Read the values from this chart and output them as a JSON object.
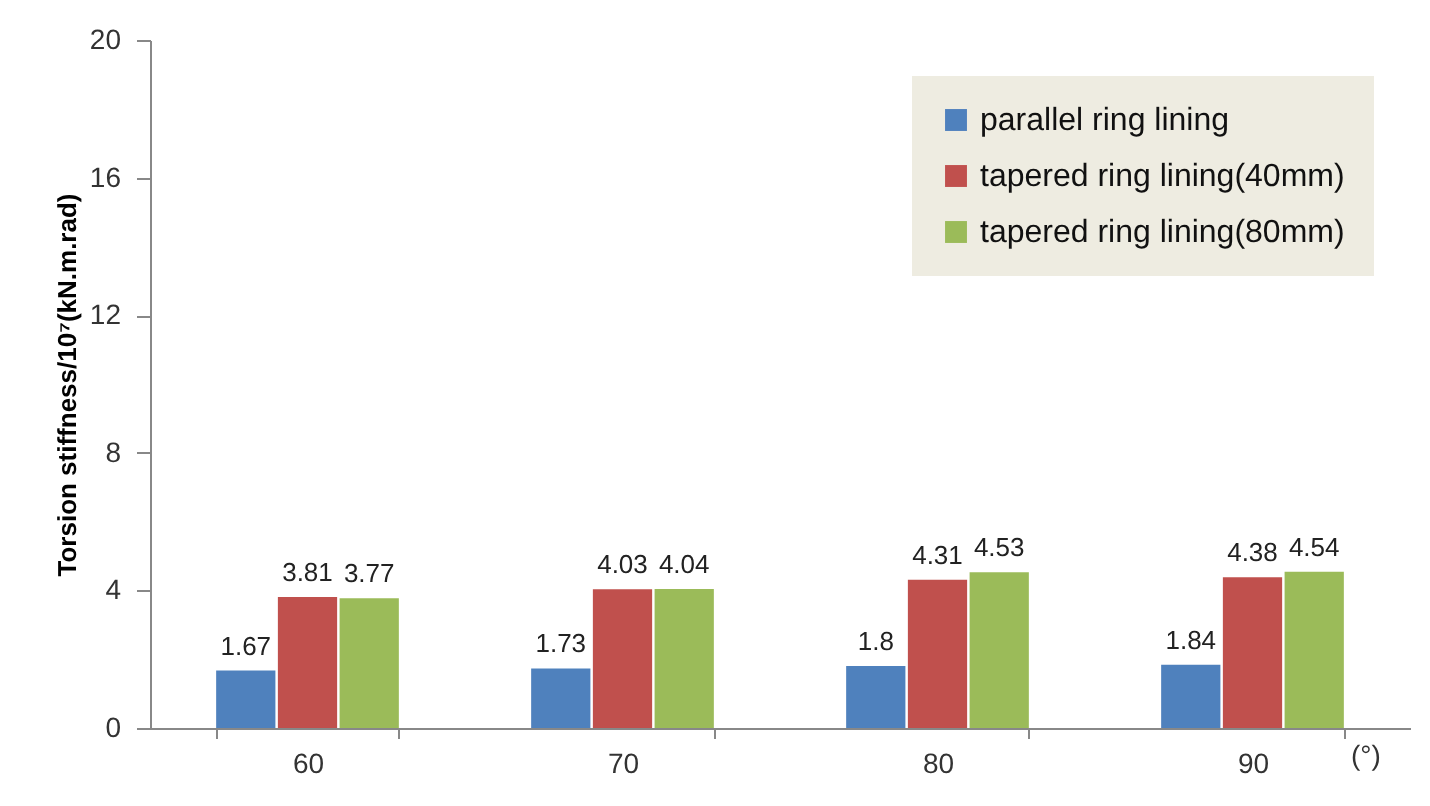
{
  "chart_data": {
    "type": "bar",
    "xlabel": "(°)",
    "ylabel": "Torsion stiffness/10⁷(kN.m.rad)",
    "categories": [
      "60",
      "70",
      "80",
      "90"
    ],
    "series": [
      {
        "name": "parallel ring lining",
        "color": "#4f81bd",
        "values": [
          1.67,
          1.73,
          1.8,
          1.84
        ]
      },
      {
        "name": "tapered ring lining(40mm)",
        "color": "#c0504d",
        "values": [
          3.81,
          4.03,
          4.31,
          4.38
        ]
      },
      {
        "name": "tapered ring lining(80mm)",
        "color": "#9bbb59",
        "values": [
          3.77,
          4.04,
          4.53,
          4.54
        ]
      }
    ],
    "ylim": [
      0,
      20
    ],
    "yticks": [
      0,
      4,
      8,
      12,
      16,
      20
    ],
    "grid": false,
    "legend": "top right",
    "data_labels": true
  }
}
